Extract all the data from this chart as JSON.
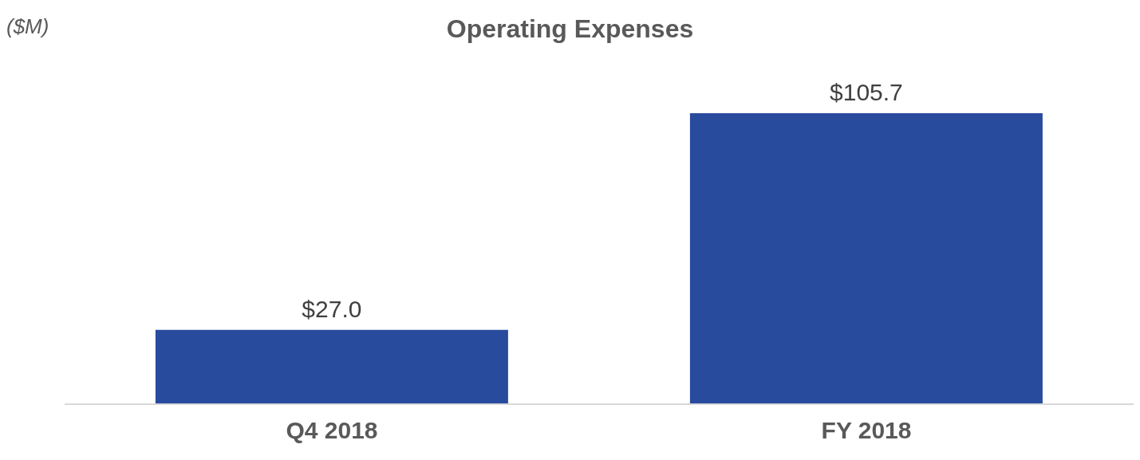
{
  "chart_data": {
    "type": "bar",
    "title": "Operating Expenses",
    "ylabel": "($M)",
    "categories": [
      "Q4 2018",
      "FY 2018"
    ],
    "values": [
      27.0,
      105.7
    ],
    "value_labels": [
      "$27.0",
      "$105.7"
    ],
    "color": "#284b9e"
  }
}
